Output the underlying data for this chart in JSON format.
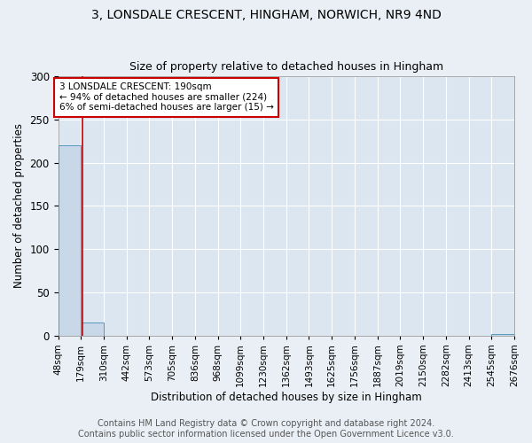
{
  "title": "3, LONSDALE CRESCENT, HINGHAM, NORWICH, NR9 4ND",
  "subtitle": "Size of property relative to detached houses in Hingham",
  "xlabel": "Distribution of detached houses by size in Hingham",
  "ylabel": "Number of detached properties",
  "footer_line1": "Contains HM Land Registry data © Crown copyright and database right 2024.",
  "footer_line2": "Contains public sector information licensed under the Open Government Licence v3.0.",
  "bin_edges": [
    48,
    179,
    310,
    442,
    573,
    705,
    836,
    968,
    1099,
    1230,
    1362,
    1493,
    1625,
    1756,
    1887,
    2019,
    2150,
    2282,
    2413,
    2545,
    2676
  ],
  "bar_heights": [
    220,
    15,
    0,
    0,
    0,
    0,
    0,
    0,
    0,
    0,
    0,
    0,
    0,
    0,
    0,
    0,
    0,
    0,
    0,
    2
  ],
  "bar_color": "#c8d8e8",
  "bar_edge_color": "#5599bb",
  "red_line_x": 190,
  "red_line_color": "#cc0000",
  "annotation_text": "3 LONSDALE CRESCENT: 190sqm\n← 94% of detached houses are smaller (224)\n6% of semi-detached houses are larger (15) →",
  "annotation_box_color": "white",
  "annotation_box_edge_color": "#cc0000",
  "ylim": [
    0,
    300
  ],
  "background_color": "#eaeff5",
  "plot_background_color": "#dce6f0",
  "title_fontsize": 10,
  "subtitle_fontsize": 9,
  "axis_label_fontsize": 8.5,
  "tick_label_fontsize": 7.5,
  "footer_fontsize": 7
}
